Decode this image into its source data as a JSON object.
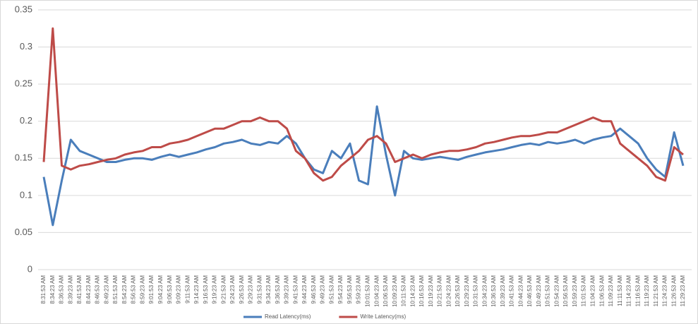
{
  "chart_data": {
    "type": "line",
    "categories": [
      "8:31:53 AM",
      "8:34:23 AM",
      "8:36:53 AM",
      "8:39:23 AM",
      "8:41:53 AM",
      "8:44:23 AM",
      "8:46:53 AM",
      "8:49:23 AM",
      "8:51:53 AM",
      "8:54:23 AM",
      "8:56:53 AM",
      "8:59:23 AM",
      "9:01:53 AM",
      "9:04:23 AM",
      "9:06:53 AM",
      "9:09:23 AM",
      "9:11:53 AM",
      "9:14:23 AM",
      "9:16:53 AM",
      "9:19:23 AM",
      "9:21:53 AM",
      "9:24:23 AM",
      "9:26:53 AM",
      "9:29:23 AM",
      "9:31:53 AM",
      "9:34:23 AM",
      "9:36:53 AM",
      "9:39:23 AM",
      "9:41:53 AM",
      "9:44:23 AM",
      "9:46:53 AM",
      "9:49:23 AM",
      "9:51:53 AM",
      "9:54:23 AM",
      "9:56:53 AM",
      "9:59:23 AM",
      "10:01:53 AM",
      "10:04:23 AM",
      "10:06:53 AM",
      "10:09:23 AM",
      "10:11:53 AM",
      "10:14:23 AM",
      "10:16:53 AM",
      "10:19:23 AM",
      "10:21:53 AM",
      "10:24:23 AM",
      "10:26:53 AM",
      "10:29:23 AM",
      "10:31:53 AM",
      "10:34:23 AM",
      "10:36:53 AM",
      "10:39:23 AM",
      "10:41:53 AM",
      "10:44:23 AM",
      "10:46:53 AM",
      "10:49:23 AM",
      "10:51:53 AM",
      "10:54:23 AM",
      "10:56:53 AM",
      "10:59:23 AM",
      "11:01:53 AM",
      "11:04:23 AM",
      "11:06:53 AM",
      "11:09:23 AM",
      "11:11:53 AM",
      "11:14:23 AM",
      "11:16:53 AM",
      "11:19:23 AM",
      "11:21:53 AM",
      "11:24:23 AM",
      "11:26:53 AM",
      "11:29:23 AM"
    ],
    "series": [
      {
        "name": "Read Latency(ms)",
        "color": "#4a7ebb",
        "values": [
          0.125,
          0.06,
          0.12,
          0.175,
          0.16,
          0.155,
          0.15,
          0.145,
          0.145,
          0.148,
          0.15,
          0.15,
          0.148,
          0.152,
          0.155,
          0.152,
          0.155,
          0.158,
          0.162,
          0.165,
          0.17,
          0.172,
          0.175,
          0.17,
          0.168,
          0.172,
          0.17,
          0.18,
          0.17,
          0.15,
          0.135,
          0.13,
          0.16,
          0.15,
          0.17,
          0.12,
          0.115,
          0.22,
          0.155,
          0.1,
          0.16,
          0.15,
          0.148,
          0.15,
          0.152,
          0.15,
          0.148,
          0.152,
          0.155,
          0.158,
          0.16,
          0.162,
          0.165,
          0.168,
          0.17,
          0.168,
          0.172,
          0.17,
          0.172,
          0.175,
          0.17,
          0.175,
          0.178,
          0.18,
          0.19,
          0.18,
          0.17,
          0.15,
          0.135,
          0.125,
          0.185,
          0.14
        ]
      },
      {
        "name": "Write Latency(ms)",
        "color": "#be4b48",
        "values": [
          0.145,
          0.325,
          0.14,
          0.135,
          0.14,
          0.142,
          0.145,
          0.148,
          0.15,
          0.155,
          0.158,
          0.16,
          0.165,
          0.165,
          0.17,
          0.172,
          0.175,
          0.18,
          0.185,
          0.19,
          0.19,
          0.195,
          0.2,
          0.2,
          0.205,
          0.2,
          0.2,
          0.19,
          0.16,
          0.15,
          0.13,
          0.12,
          0.125,
          0.14,
          0.15,
          0.16,
          0.175,
          0.18,
          0.17,
          0.145,
          0.15,
          0.155,
          0.15,
          0.155,
          0.158,
          0.16,
          0.16,
          0.162,
          0.165,
          0.17,
          0.172,
          0.175,
          0.178,
          0.18,
          0.18,
          0.182,
          0.185,
          0.185,
          0.19,
          0.195,
          0.2,
          0.205,
          0.2,
          0.2,
          0.17,
          0.16,
          0.15,
          0.14,
          0.125,
          0.12,
          0.165,
          0.155
        ]
      }
    ],
    "ylim": [
      0,
      0.35
    ],
    "yticks": [
      0,
      0.05,
      0.1,
      0.15,
      0.2,
      0.25,
      0.3,
      0.35
    ],
    "grid": true,
    "legend": "bottom"
  }
}
